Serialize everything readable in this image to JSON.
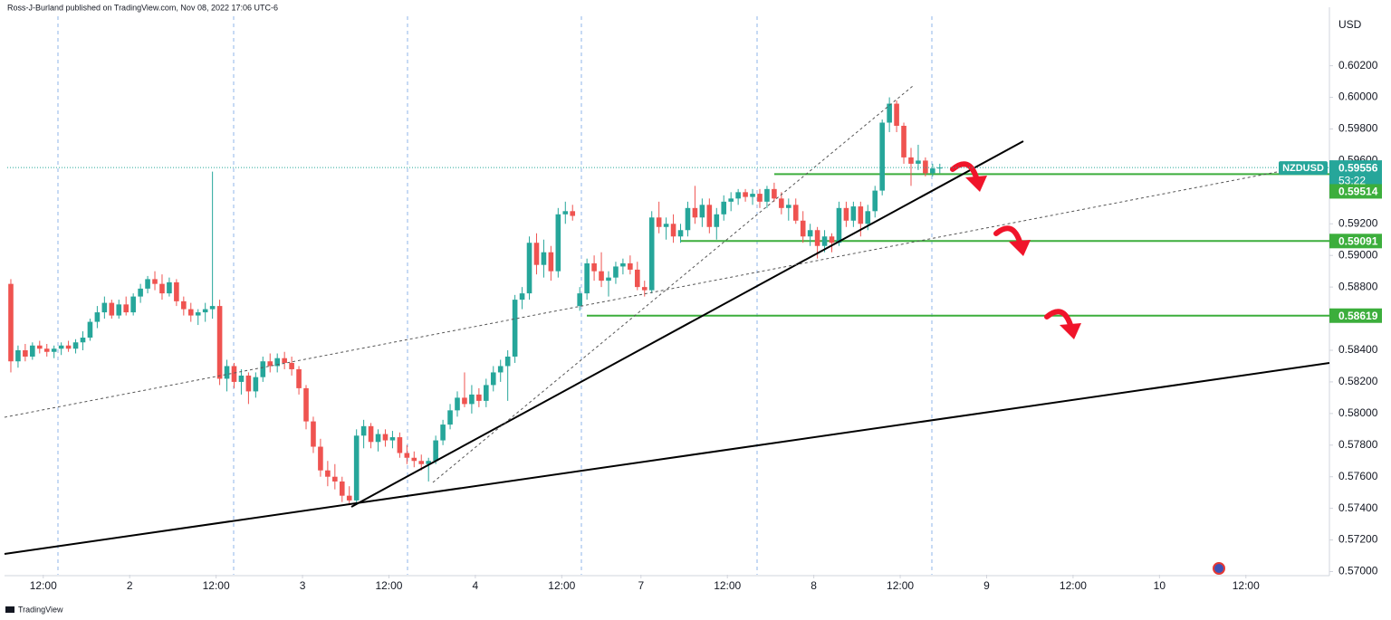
{
  "header": "Ross-J-Burland published on TradingView.com, Nov 08, 2022 17:06 UTC-6",
  "footer": "TradingView",
  "chart_data": {
    "type": "candlestick",
    "symbol": "NZDUSD",
    "currency": "USD",
    "countdown": "53:22",
    "up_color": "#26a69a",
    "down_color": "#ef5350",
    "level_color": "#3cae3c",
    "grid": false,
    "xlim": [
      -0.5,
      183.1
    ],
    "ylim": [
      0.5698,
      0.6057
    ],
    "candles": [
      [
        0.5882,
        0.5885,
        0.5826,
        0.5833
      ],
      [
        0.5833,
        0.5843,
        0.5829,
        0.584
      ],
      [
        0.584,
        0.5844,
        0.5833,
        0.5836
      ],
      [
        0.5836,
        0.5845,
        0.5834,
        0.5843
      ],
      [
        0.5843,
        0.5846,
        0.5838,
        0.5841
      ],
      [
        0.5841,
        0.5844,
        0.5836,
        0.5839
      ],
      [
        0.5839,
        0.5843,
        0.5835,
        0.5841
      ],
      [
        0.5841,
        0.5845,
        0.5837,
        0.5843
      ],
      [
        0.5843,
        0.5846,
        0.5839,
        0.5841
      ],
      [
        0.5841,
        0.5847,
        0.5838,
        0.5845
      ],
      [
        0.5845,
        0.5852,
        0.584,
        0.5848
      ],
      [
        0.5848,
        0.586,
        0.5846,
        0.5858
      ],
      [
        0.5858,
        0.5868,
        0.5854,
        0.5864
      ],
      [
        0.5864,
        0.5874,
        0.586,
        0.587
      ],
      [
        0.587,
        0.5872,
        0.586,
        0.5862
      ],
      [
        0.5862,
        0.5872,
        0.586,
        0.5869
      ],
      [
        0.5869,
        0.5874,
        0.5862,
        0.5864
      ],
      [
        0.5864,
        0.5876,
        0.5862,
        0.5874
      ],
      [
        0.5874,
        0.5882,
        0.587,
        0.5879
      ],
      [
        0.5879,
        0.5887,
        0.5876,
        0.5885
      ],
      [
        0.5885,
        0.589,
        0.5878,
        0.5882
      ],
      [
        0.5882,
        0.5888,
        0.5872,
        0.5876
      ],
      [
        0.5876,
        0.5886,
        0.5874,
        0.5883
      ],
      [
        0.5883,
        0.5885,
        0.5868,
        0.5871
      ],
      [
        0.5871,
        0.5874,
        0.5862,
        0.5866
      ],
      [
        0.5866,
        0.587,
        0.5858,
        0.5862
      ],
      [
        0.5862,
        0.5866,
        0.5856,
        0.5864
      ],
      [
        0.5864,
        0.587,
        0.5858,
        0.5866
      ],
      [
        0.5866,
        0.5953,
        0.586,
        0.5868
      ],
      [
        0.5868,
        0.5872,
        0.5818,
        0.5822
      ],
      [
        0.5822,
        0.5834,
        0.5814,
        0.583
      ],
      [
        0.583,
        0.5832,
        0.5816,
        0.582
      ],
      [
        0.582,
        0.5828,
        0.5812,
        0.5824
      ],
      [
        0.5824,
        0.5826,
        0.5806,
        0.5814
      ],
      [
        0.5814,
        0.5826,
        0.581,
        0.5823
      ],
      [
        0.5823,
        0.5836,
        0.582,
        0.5833
      ],
      [
        0.5833,
        0.5838,
        0.5826,
        0.583
      ],
      [
        0.583,
        0.5838,
        0.5826,
        0.5835
      ],
      [
        0.5835,
        0.5839,
        0.5828,
        0.5832
      ],
      [
        0.5832,
        0.5836,
        0.5824,
        0.5828
      ],
      [
        0.5828,
        0.583,
        0.5812,
        0.5816
      ],
      [
        0.5816,
        0.5818,
        0.579,
        0.5795
      ],
      [
        0.5795,
        0.5798,
        0.5775,
        0.5779
      ],
      [
        0.5779,
        0.5784,
        0.576,
        0.5764
      ],
      [
        0.5764,
        0.577,
        0.5754,
        0.576
      ],
      [
        0.576,
        0.5768,
        0.5752,
        0.5757
      ],
      [
        0.5757,
        0.576,
        0.5744,
        0.5748
      ],
      [
        0.5748,
        0.5754,
        0.5742,
        0.5745
      ],
      [
        0.5745,
        0.579,
        0.5743,
        0.5786
      ],
      [
        0.5786,
        0.5796,
        0.5778,
        0.5792
      ],
      [
        0.5792,
        0.5794,
        0.5778,
        0.5782
      ],
      [
        0.5782,
        0.579,
        0.5776,
        0.5787
      ],
      [
        0.5787,
        0.579,
        0.5779,
        0.5783
      ],
      [
        0.5783,
        0.5789,
        0.5778,
        0.5785
      ],
      [
        0.5785,
        0.5788,
        0.5772,
        0.5775
      ],
      [
        0.5775,
        0.578,
        0.5768,
        0.5772
      ],
      [
        0.5772,
        0.5776,
        0.5766,
        0.577
      ],
      [
        0.577,
        0.5774,
        0.5764,
        0.5768
      ],
      [
        0.5768,
        0.5772,
        0.5757,
        0.577
      ],
      [
        0.577,
        0.5786,
        0.5768,
        0.5783
      ],
      [
        0.5783,
        0.5796,
        0.578,
        0.5793
      ],
      [
        0.5793,
        0.5806,
        0.579,
        0.5802
      ],
      [
        0.5802,
        0.5814,
        0.5798,
        0.581
      ],
      [
        0.581,
        0.5826,
        0.5804,
        0.5806
      ],
      [
        0.5806,
        0.5818,
        0.58,
        0.5812
      ],
      [
        0.5812,
        0.5816,
        0.5804,
        0.5808
      ],
      [
        0.5808,
        0.5822,
        0.5804,
        0.5818
      ],
      [
        0.5818,
        0.583,
        0.5814,
        0.5826
      ],
      [
        0.5826,
        0.5834,
        0.582,
        0.583
      ],
      [
        0.583,
        0.584,
        0.5808,
        0.5836
      ],
      [
        0.5836,
        0.5875,
        0.5832,
        0.5872
      ],
      [
        0.5872,
        0.588,
        0.5866,
        0.5876
      ],
      [
        0.5876,
        0.5912,
        0.5872,
        0.5908
      ],
      [
        0.5908,
        0.5914,
        0.5888,
        0.5894
      ],
      [
        0.5894,
        0.591,
        0.5886,
        0.5902
      ],
      [
        0.5902,
        0.5906,
        0.5884,
        0.589
      ],
      [
        0.589,
        0.593,
        0.5886,
        0.5926
      ],
      [
        0.5926,
        0.5934,
        0.592,
        0.5928
      ],
      [
        0.5928,
        0.5932,
        0.5922,
        0.5925
      ],
      [
        0.5868,
        0.588,
        0.5865,
        0.5876
      ],
      [
        0.5876,
        0.5898,
        0.5872,
        0.5895
      ],
      [
        0.5895,
        0.59,
        0.5884,
        0.589
      ],
      [
        0.589,
        0.5902,
        0.588,
        0.5884
      ],
      [
        0.5884,
        0.589,
        0.5874,
        0.5886
      ],
      [
        0.5886,
        0.5896,
        0.5882,
        0.5893
      ],
      [
        0.5893,
        0.5898,
        0.5888,
        0.5895
      ],
      [
        0.5895,
        0.59,
        0.5888,
        0.5891
      ],
      [
        0.5891,
        0.5896,
        0.5878,
        0.588
      ],
      [
        0.588,
        0.5884,
        0.5874,
        0.5878
      ],
      [
        0.5878,
        0.5928,
        0.5876,
        0.5924
      ],
      [
        0.5924,
        0.5934,
        0.5914,
        0.5918
      ],
      [
        0.5918,
        0.5924,
        0.591,
        0.592
      ],
      [
        0.592,
        0.5926,
        0.5908,
        0.5912
      ],
      [
        0.5912,
        0.592,
        0.5908,
        0.5916
      ],
      [
        0.5916,
        0.5934,
        0.5912,
        0.593
      ],
      [
        0.593,
        0.5944,
        0.592,
        0.5924
      ],
      [
        0.5924,
        0.5936,
        0.5918,
        0.5932
      ],
      [
        0.5932,
        0.5936,
        0.5914,
        0.5918
      ],
      [
        0.5918,
        0.593,
        0.591,
        0.5926
      ],
      [
        0.5926,
        0.5938,
        0.5922,
        0.5934
      ],
      [
        0.5934,
        0.594,
        0.5928,
        0.5936
      ],
      [
        0.5936,
        0.5942,
        0.5932,
        0.594
      ],
      [
        0.594,
        0.5942,
        0.5934,
        0.5937
      ],
      [
        0.5937,
        0.5942,
        0.5932,
        0.5939
      ],
      [
        0.5939,
        0.5942,
        0.593,
        0.5934
      ],
      [
        0.5934,
        0.5944,
        0.593,
        0.5942
      ],
      [
        0.5942,
        0.5946,
        0.5934,
        0.5936
      ],
      [
        0.5936,
        0.594,
        0.5926,
        0.593
      ],
      [
        0.593,
        0.5936,
        0.5922,
        0.5932
      ],
      [
        0.5932,
        0.5936,
        0.592,
        0.5922
      ],
      [
        0.5922,
        0.5928,
        0.5908,
        0.5912
      ],
      [
        0.5912,
        0.592,
        0.5906,
        0.5916
      ],
      [
        0.5916,
        0.5918,
        0.5898,
        0.5906
      ],
      [
        0.5906,
        0.5916,
        0.5902,
        0.5912
      ],
      [
        0.5912,
        0.5914,
        0.5902,
        0.5908
      ],
      [
        0.5908,
        0.5934,
        0.5906,
        0.593
      ],
      [
        0.593,
        0.5934,
        0.5918,
        0.5922
      ],
      [
        0.5922,
        0.5934,
        0.5918,
        0.5931
      ],
      [
        0.5931,
        0.5934,
        0.5912,
        0.592
      ],
      [
        0.592,
        0.5932,
        0.5916,
        0.5928
      ],
      [
        0.5928,
        0.5944,
        0.5924,
        0.5941
      ],
      [
        0.5941,
        0.5986,
        0.5938,
        0.5984
      ],
      [
        0.5984,
        0.6,
        0.5978,
        0.5996
      ],
      [
        0.5996,
        0.5998,
        0.5978,
        0.5982
      ],
      [
        0.5982,
        0.5984,
        0.5958,
        0.5962
      ],
      [
        0.5962,
        0.5968,
        0.5944,
        0.5958
      ],
      [
        0.5958,
        0.597,
        0.5954,
        0.596
      ],
      [
        0.596,
        0.5962,
        0.595,
        0.5952
      ],
      [
        0.5952,
        0.5958,
        0.595,
        0.5955
      ],
      [
        0.5955,
        0.5958,
        0.5952,
        0.59556
      ]
    ],
    "yticks": [
      {
        "value": 0.57,
        "label": "0.57000"
      },
      {
        "value": 0.572,
        "label": "0.57200"
      },
      {
        "value": 0.574,
        "label": "0.57400"
      },
      {
        "value": 0.576,
        "label": "0.57600"
      },
      {
        "value": 0.578,
        "label": "0.57800"
      },
      {
        "value": 0.58,
        "label": "0.58000"
      },
      {
        "value": 0.582,
        "label": "0.58200"
      },
      {
        "value": 0.584,
        "label": "0.58400"
      },
      {
        "value": 0.586,
        "label": "0.58600"
      },
      {
        "value": 0.588,
        "label": "0.58800"
      },
      {
        "value": 0.59,
        "label": "0.59000"
      },
      {
        "value": 0.592,
        "label": "0.59200"
      },
      {
        "value": 0.594,
        "label": "0.59400"
      },
      {
        "value": 0.596,
        "label": "0.59600"
      },
      {
        "value": 0.598,
        "label": "0.59800"
      },
      {
        "value": 0.6,
        "label": "0.60000"
      },
      {
        "value": 0.602,
        "label": "0.60200"
      }
    ],
    "xticks": [
      {
        "value": 4.5,
        "label": "12:00"
      },
      {
        "value": 16.5,
        "label": "2"
      },
      {
        "value": 28.5,
        "label": "12:00"
      },
      {
        "value": 40.5,
        "label": "3"
      },
      {
        "value": 52.5,
        "label": "12:00"
      },
      {
        "value": 64.5,
        "label": "4"
      },
      {
        "value": 76.5,
        "label": "12:00"
      },
      {
        "value": 87.5,
        "label": "7"
      },
      {
        "value": 99.5,
        "label": "12:00"
      },
      {
        "value": 111.5,
        "label": "8"
      },
      {
        "value": 123.5,
        "label": "12:00"
      },
      {
        "value": 135.5,
        "label": "9"
      },
      {
        "value": 147.5,
        "label": "12:00"
      },
      {
        "value": 159.5,
        "label": "10"
      },
      {
        "value": 171.5,
        "label": "12:00"
      }
    ],
    "levels": [
      0.59514,
      0.59091,
      0.58619
    ]
  }
}
